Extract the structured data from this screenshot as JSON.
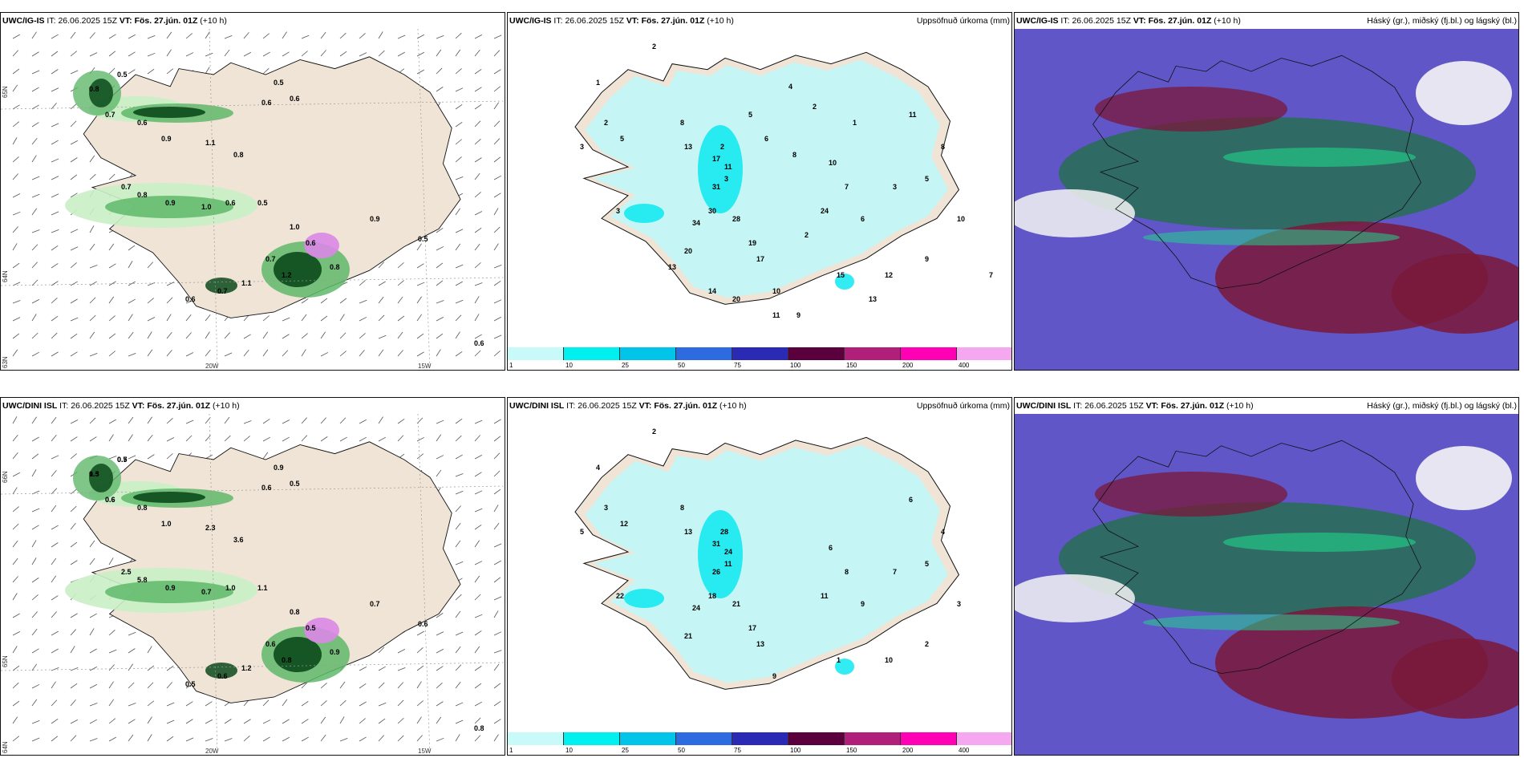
{
  "colors": {
    "land": "#efe4d6",
    "light_green": "#c9efc7",
    "mid_green": "#5fb86a",
    "dark_green": "#0c4a1c",
    "pink": "#d987e6",
    "cyan_light": "#c2f7f7",
    "cyan": "#00e7f0",
    "ocean_purple": "#6056c8",
    "teal": "#2c6b60",
    "maroon": "#7a1838",
    "cloud_white": "#f5f5f5",
    "line": "#111111"
  },
  "rows": [
    {
      "model": "UWC/IG-IS",
      "issue_prefix": "IT:",
      "issue_time": "26.06.2025 15Z",
      "valid_prefix": "VT:",
      "valid_time": "Fös. 27.jún. 01Z",
      "lead": "(+10 h)",
      "panels": {
        "wind": {
          "axis_lat": [
            "65N",
            "64N",
            "63N"
          ],
          "axis_lon": [
            "20W",
            "15W"
          ],
          "labels": [
            "0.8",
            "0.5",
            "0.7",
            "0.6",
            "0.9",
            "1.1",
            "0.8",
            "0.7",
            "0.8",
            "0.9",
            "1.0",
            "0.6",
            "0.5",
            "1.0",
            "0.7",
            "0.6",
            "0.8",
            "1.2",
            "1.1",
            "0.7",
            "0.6",
            "0.9",
            "0.5",
            "0.6",
            "0.5",
            "0.6",
            "0.6"
          ]
        },
        "precip": {
          "title": "Uppsöfnuð úrkoma (mm)",
          "labels": [
            "2",
            "1",
            "2",
            "3",
            "5",
            "8",
            "3",
            "13",
            "2",
            "17",
            "11",
            "3",
            "31",
            "30",
            "34",
            "28",
            "19",
            "20",
            "17",
            "10",
            "7",
            "24",
            "6",
            "3",
            "5",
            "8",
            "11",
            "10",
            "9",
            "12",
            "15",
            "10",
            "11",
            "9",
            "13",
            "14",
            "20",
            "13",
            "7",
            "4",
            "2",
            "5",
            "6",
            "8",
            "1",
            "2"
          ]
        },
        "cloud": {
          "title": "Háský (gr.), miðský (fj.bl.) og lágský (bl.)"
        }
      }
    },
    {
      "model": "UWC/DINI ISL",
      "issue_prefix": "IT:",
      "issue_time": "26.06.2025 15Z",
      "valid_prefix": "VT:",
      "valid_time": "Fös. 27.jún. 01Z",
      "lead": "(+10 h)",
      "panels": {
        "wind": {
          "axis_lat": [
            "66N",
            "65N",
            "64N"
          ],
          "axis_lon": [
            "20W",
            "15W"
          ],
          "labels": [
            "0.5",
            "0.7",
            "0.6",
            "0.8",
            "1.0",
            "2.3",
            "3.6",
            "2.5",
            "5.8",
            "0.9",
            "0.7",
            "1.0",
            "1.1",
            "0.8",
            "0.6",
            "0.5",
            "0.9",
            "0.8",
            "1.2",
            "0.6",
            "0.5",
            "0.7",
            "0.6",
            "0.8",
            "0.9",
            "0.5",
            "0.6",
            "1.3",
            "0.5",
            "0.6"
          ]
        },
        "precip": {
          "title": "Uppsöfnuð úrkoma (mm)",
          "labels": [
            "2",
            "4",
            "3",
            "5",
            "12",
            "8",
            "22",
            "13",
            "28",
            "31",
            "24",
            "11",
            "26",
            "18",
            "24",
            "21",
            "17",
            "21",
            "13",
            "6",
            "8",
            "11",
            "9",
            "7",
            "5",
            "4",
            "6",
            "3",
            "2",
            "10",
            "1",
            "9"
          ]
        },
        "cloud": {
          "title": "Háský (gr.), miðský (fj.bl.) og lágský (bl.)"
        }
      }
    }
  ],
  "colorbar": {
    "ticks": [
      "1",
      "10",
      "25",
      "50",
      "75",
      "100",
      "150",
      "200",
      "400"
    ],
    "colors": [
      "#c8fafa",
      "#00f0f0",
      "#00c4e8",
      "#2e6be0",
      "#2a2ab4",
      "#5a003c",
      "#b0207a",
      "#ff00b4",
      "#f5a8f0"
    ]
  }
}
